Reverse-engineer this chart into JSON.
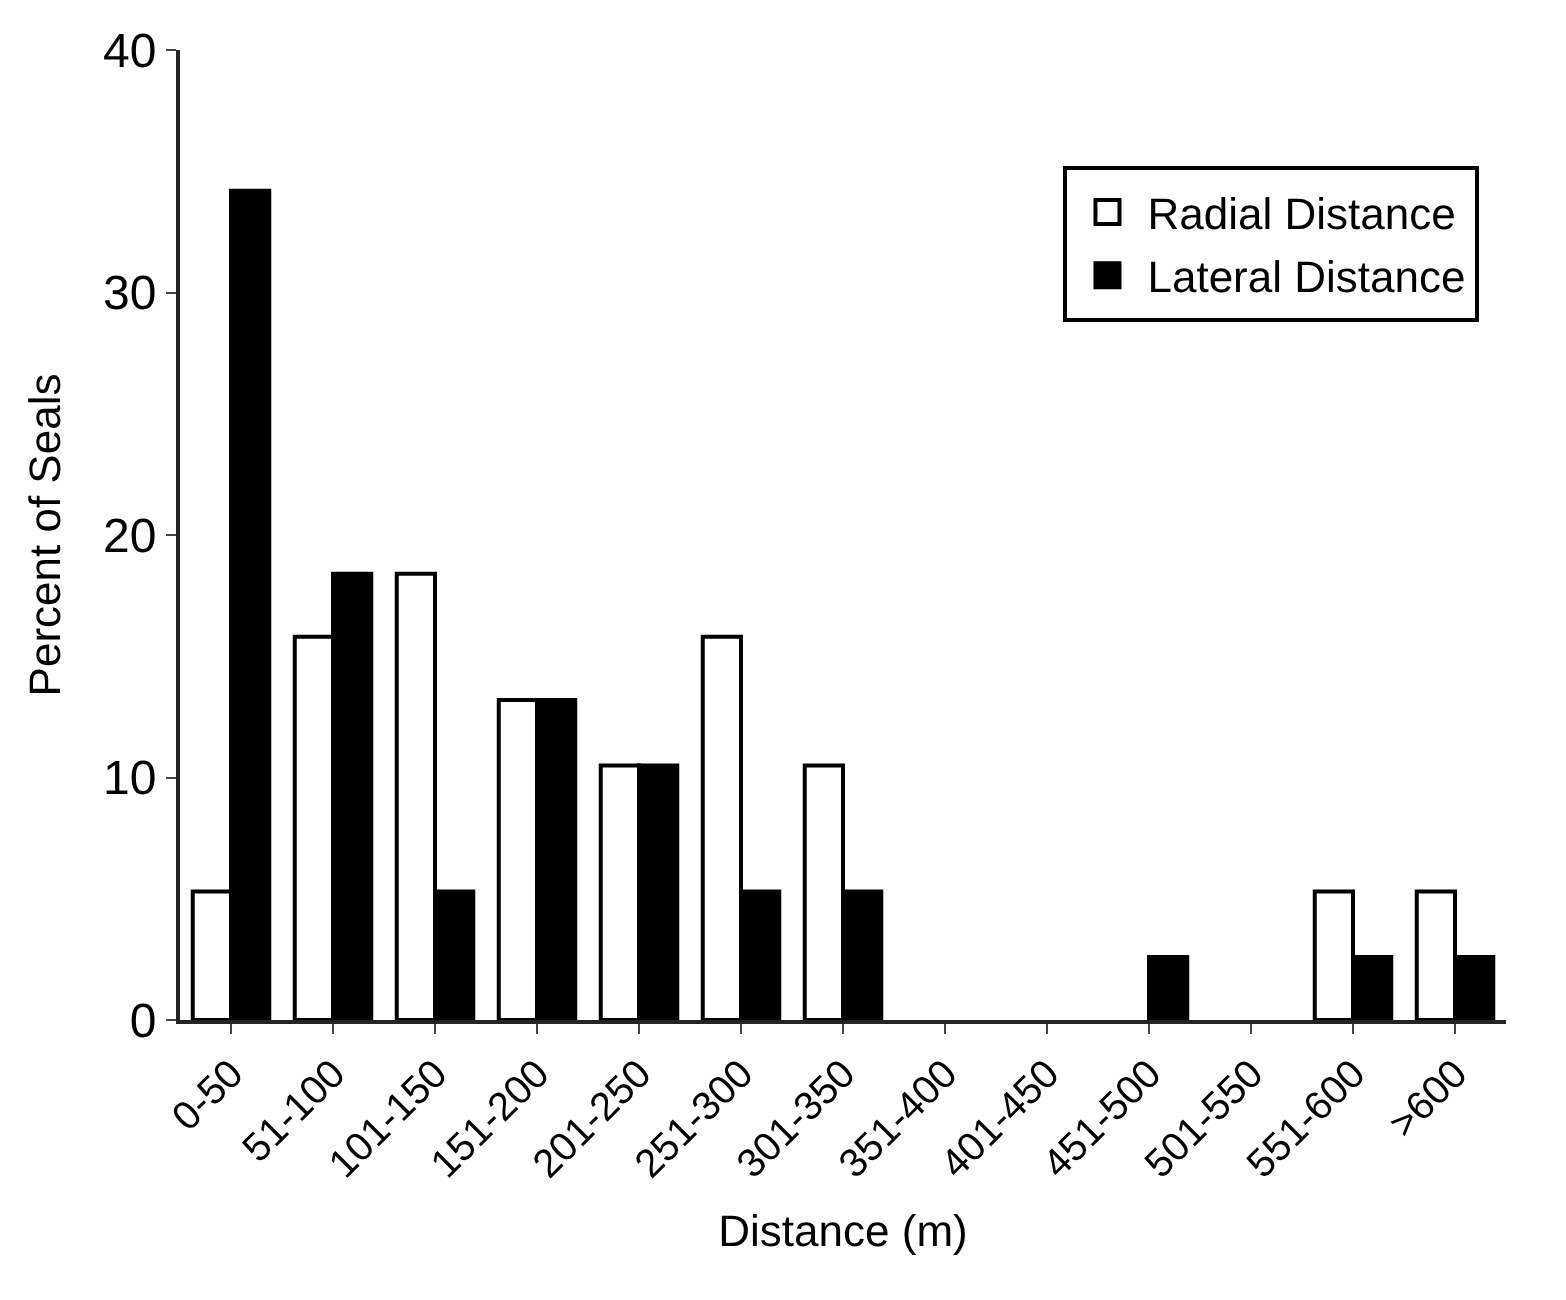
{
  "chart_data": {
    "type": "bar",
    "xlabel": "Distance (m)",
    "ylabel": "Percent of Seals",
    "categories": [
      "0-50",
      "51-100",
      "101-150",
      "151-200",
      "201-250",
      "251-300",
      "301-350",
      "351-400",
      "401-450",
      "451-500",
      "501-550",
      "551-600",
      ">600"
    ],
    "series": [
      {
        "name": "Radial Distance",
        "color": "#ffffff",
        "values": [
          5.3,
          15.8,
          18.4,
          13.2,
          10.5,
          15.8,
          10.5,
          0,
          0,
          0,
          0,
          5.3,
          5.3
        ]
      },
      {
        "name": "Lateral Distance",
        "color": "#000000",
        "values": [
          34.2,
          18.4,
          5.3,
          13.2,
          10.5,
          5.3,
          5.3,
          0,
          0,
          2.6,
          0,
          2.6,
          2.6
        ]
      }
    ],
    "ylim": [
      0,
      40
    ],
    "yticks": [
      0,
      10,
      20,
      30,
      40
    ],
    "grid": false,
    "legend": "top right"
  }
}
